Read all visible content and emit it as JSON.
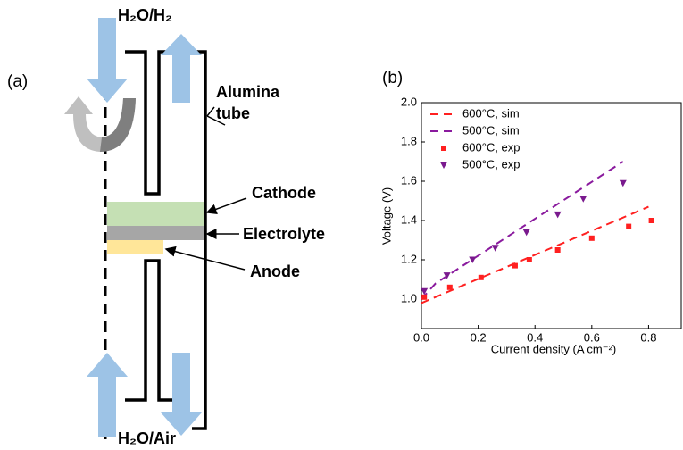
{
  "panel_a": {
    "label": "(a)",
    "inlet_top": "H₂O/H₂",
    "inlet_bottom": "H₂O/Air",
    "tube_line1": "Alumina",
    "tube_line2": "tube",
    "cathode": "Cathode",
    "electrolyte": "Electrolyte",
    "anode": "Anode"
  },
  "chart_data": {
    "type": "scatter",
    "panel_label": "(b)",
    "x_label": "Current density (A cm⁻²)",
    "y_label": "Voltage (V)",
    "xlim": [
      0,
      0.915
    ],
    "ylim": [
      0.85,
      2.0
    ],
    "xticks": [
      {
        "value": 0,
        "label": "0.0"
      },
      {
        "value": 0.2,
        "label": "0.2"
      },
      {
        "value": 0.4,
        "label": "0.4"
      },
      {
        "value": 0.6,
        "label": "0.6"
      },
      {
        "value": 0.8,
        "label": "0.8"
      }
    ],
    "yticks": [
      {
        "value": 1,
        "label": "1.0"
      },
      {
        "value": 1.2,
        "label": "1.2"
      },
      {
        "value": 1.4,
        "label": "1.4"
      },
      {
        "value": 1.6,
        "label": "1.6"
      },
      {
        "value": 1.8,
        "label": "1.8"
      },
      {
        "value": 2,
        "label": "2.0"
      }
    ],
    "legend": "upper-left",
    "series": [
      {
        "name": "600°C, sim",
        "color": "#ff2020",
        "marker": "dashed-line",
        "x": [
          0,
          0.8
        ],
        "values": [
          0.98,
          1.47
        ]
      },
      {
        "name": "500°C, sim",
        "color": "#8a1a9e",
        "marker": "dashed-line",
        "x": [
          0,
          0.05,
          0.71
        ],
        "values": [
          1.0,
          1.08,
          1.7
        ]
      },
      {
        "name": "600°C, exp",
        "color": "#ff2020",
        "marker": "square",
        "x": [
          0.01,
          0.1,
          0.21,
          0.33,
          0.38,
          0.48,
          0.6,
          0.73,
          0.81
        ],
        "values": [
          1.01,
          1.06,
          1.11,
          1.17,
          1.2,
          1.25,
          1.31,
          1.37,
          1.4
        ]
      },
      {
        "name": "500°C, exp",
        "color": "#7a1a8e",
        "marker": "triangle-down",
        "x": [
          0.01,
          0.09,
          0.18,
          0.26,
          0.37,
          0.48,
          0.57,
          0.71
        ],
        "values": [
          1.04,
          1.12,
          1.2,
          1.26,
          1.34,
          1.43,
          1.51,
          1.59
        ]
      }
    ]
  }
}
